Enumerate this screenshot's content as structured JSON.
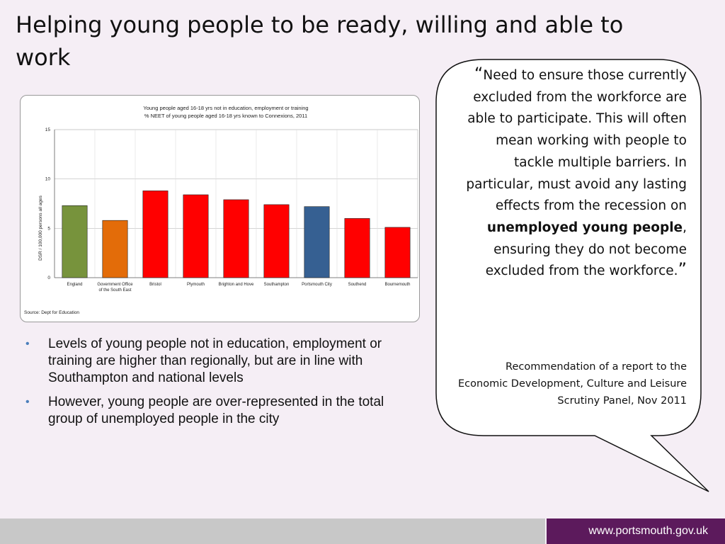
{
  "slide": {
    "title": "Helping young people to be ready, willing and able to work",
    "url": "www.portsmouth.gov.uk"
  },
  "chart_data": {
    "type": "bar",
    "title": "Young people aged 16-18 yrs not in education, employment or training",
    "subtitle": "% NEET of young people aged 16-18 yrs known to Connexions, 2011",
    "ylabel": "DSR / 100,000  persons all ages",
    "xlabel": "",
    "ylim": [
      0,
      15
    ],
    "yticks": [
      0,
      5,
      10,
      15
    ],
    "categories": [
      "England",
      "Government Office of the South East",
      "Bristol",
      "Plymouth",
      "Brighton and Hove",
      "Southampton",
      "Portsmouth City",
      "Southend",
      "Bournemouth"
    ],
    "category_lines": [
      [
        "England"
      ],
      [
        "Government Office",
        "of the South East"
      ],
      [
        "Bristol"
      ],
      [
        "Plymouth"
      ],
      [
        "Brighton and Hove"
      ],
      [
        "Southampton"
      ],
      [
        "Portsmouth City"
      ],
      [
        "Southend"
      ],
      [
        "Bournemouth"
      ]
    ],
    "values": [
      7.3,
      5.8,
      8.8,
      8.4,
      7.9,
      7.4,
      7.2,
      6.0,
      5.1
    ],
    "colors": [
      "#77933c",
      "#e36c09",
      "#ff0000",
      "#ff0000",
      "#ff0000",
      "#ff0000",
      "#366092",
      "#ff0000",
      "#ff0000"
    ],
    "grid": true,
    "source": "Source: Dept for Education"
  },
  "bullets": [
    "Levels of young people not in education, employment or training are higher than regionally, but are in line with Southampton and national levels",
    "However, young people are over-represented in the total group of unemployed people in the city"
  ],
  "quote": {
    "open_mark": "“",
    "text_1": "Need to ensure those currently  excluded from the workforce are able to participate. This will often mean working with people to tackle multiple barriers. In particular, must avoid any lasting effects from the recession on ",
    "bold": "unemployed young people",
    "text_2": ", ensuring they do not become excluded from the workforce.",
    "close_mark": "”",
    "attribution": "Recommendation of a report to the Economic Development, Culture and Leisure Scrutiny Panel, Nov 2011"
  }
}
